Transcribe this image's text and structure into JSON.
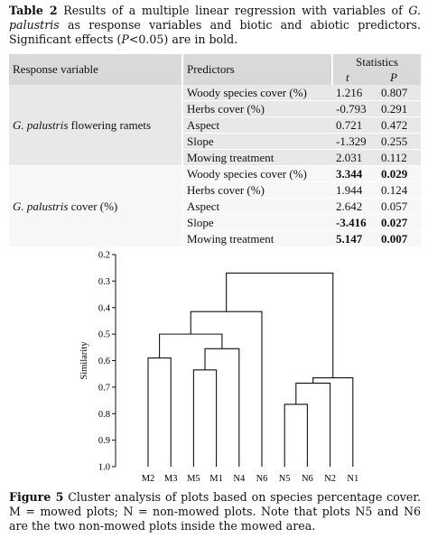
{
  "table": {
    "label": "Table 2",
    "caption_a": " Results of a multiple linear regression with variables of ",
    "caption_species": "G. palustris",
    "caption_b": " as response variables and biotic and abiotic predictors. Significant effects (",
    "caption_p": "P",
    "caption_c": "<0.05) are in bold.",
    "headers": {
      "response": "Response variable",
      "predictors": "Predictors",
      "statistics": "Statistics",
      "t": "t",
      "p": "P"
    },
    "groups": [
      {
        "species": "G. palustris",
        "response_suffix": " flowering ramets",
        "rows": [
          {
            "predictor": "Woody species cover (%)",
            "t": "1.216",
            "p": "0.807",
            "bold": false
          },
          {
            "predictor": "Herbs cover (%)",
            "t": "-0.793",
            "p": "0.291",
            "bold": false
          },
          {
            "predictor": "Aspect",
            "t": "0.721",
            "p": "0.472",
            "bold": false
          },
          {
            "predictor": "Slope",
            "t": "-1.329",
            "p": "0.255",
            "bold": false
          },
          {
            "predictor": "Mowing treatment",
            "t": "2.031",
            "p": "0.112",
            "bold": false
          }
        ]
      },
      {
        "species": "G. palustris",
        "response_suffix": " cover (%)",
        "rows": [
          {
            "predictor": "Woody species cover (%)",
            "t": "3.344",
            "p": "0.029",
            "bold": true
          },
          {
            "predictor": "Herbs cover (%)",
            "t": "1.944",
            "p": "0.124",
            "bold": false
          },
          {
            "predictor": "Aspect",
            "t": "2.642",
            "p": "0.057",
            "bold": false
          },
          {
            "predictor": "Slope",
            "t": "-3.416",
            "p": "0.027",
            "bold": true
          },
          {
            "predictor": "Mowing treatment",
            "t": "5.147",
            "p": "0.007",
            "bold": true
          }
        ]
      }
    ]
  },
  "figure": {
    "ylabel": "Similarity",
    "yticks": [
      "0.2",
      "0.3",
      "0.4",
      "0.5",
      "0.6",
      "0.7",
      "0.8",
      "0.9",
      "1.0"
    ],
    "leaves": [
      "M2",
      "M3",
      "M5",
      "M1",
      "N4",
      "N6",
      "N5",
      "N6",
      "N2",
      "N1"
    ],
    "merges": [
      {
        "left": "leaf:0",
        "right": "leaf:1",
        "height": 0.59
      },
      {
        "left": "leaf:2",
        "right": "leaf:3",
        "height": 0.635
      },
      {
        "left": "node:1",
        "right": "leaf:4",
        "height": 0.555
      },
      {
        "left": "node:0",
        "right": "node:2",
        "height": 0.5
      },
      {
        "left": "node:3",
        "right": "leaf:5",
        "height": 0.415
      },
      {
        "left": "leaf:6",
        "right": "leaf:7",
        "height": 0.765
      },
      {
        "left": "node:5",
        "right": "leaf:8",
        "height": 0.685
      },
      {
        "left": "node:6",
        "right": "leaf:9",
        "height": 0.665
      },
      {
        "left": "node:4",
        "right": "node:7",
        "height": 0.27
      }
    ],
    "label": "Figure 5",
    "caption": " Cluster analysis of plots based on species percentage cover. M = mowed plots; N = non-mowed plots. Note that plots N5 and N6 are the two non-mowed plots inside the mowed area."
  }
}
